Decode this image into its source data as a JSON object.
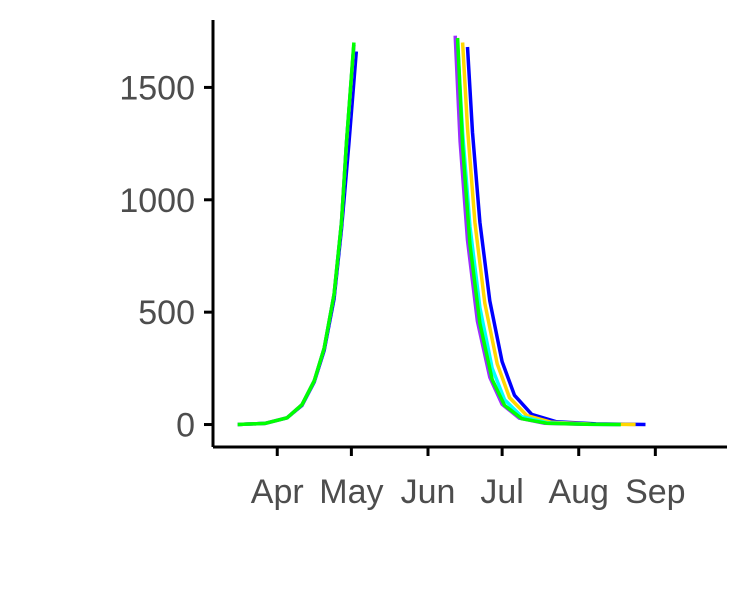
{
  "chart_data": {
    "type": "line",
    "title": "",
    "xlabel": "",
    "ylabel": "",
    "x_axis": {
      "type": "date",
      "range": [
        "2023-03-06",
        "2023-09-30"
      ],
      "ticks": [
        {
          "date": "2023-04-01",
          "label": "Apr"
        },
        {
          "date": "2023-05-01",
          "label": "May"
        },
        {
          "date": "2023-06-01",
          "label": "Jun"
        },
        {
          "date": "2023-07-01",
          "label": "Jul"
        },
        {
          "date": "2023-08-01",
          "label": "Aug"
        },
        {
          "date": "2023-09-01",
          "label": "Sep"
        }
      ]
    },
    "y_axis": {
      "range": [
        -100,
        1800
      ],
      "ticks": [
        {
          "value": 0,
          "label": "0"
        },
        {
          "value": 500,
          "label": "500"
        },
        {
          "value": 1000,
          "label": "1000"
        },
        {
          "value": 1500,
          "label": "1500"
        }
      ]
    },
    "grid": false,
    "legend": "none",
    "series": [
      {
        "color": "#0000ff",
        "rising": [
          [
            "2023-03-16",
            0
          ],
          [
            "2023-03-27",
            5
          ],
          [
            "2023-04-05",
            30
          ],
          [
            "2023-04-11",
            85
          ],
          [
            "2023-04-16",
            190
          ],
          [
            "2023-04-20",
            330
          ],
          [
            "2023-04-24",
            560
          ],
          [
            "2023-04-27",
            870
          ],
          [
            "2023-04-30",
            1250
          ],
          [
            "2023-05-03",
            1660
          ]
        ],
        "falling": [
          [
            "2023-06-17",
            1680
          ],
          [
            "2023-06-19",
            1300
          ],
          [
            "2023-06-22",
            900
          ],
          [
            "2023-06-26",
            550
          ],
          [
            "2023-07-01",
            280
          ],
          [
            "2023-07-06",
            130
          ],
          [
            "2023-07-13",
            45
          ],
          [
            "2023-07-23",
            12
          ],
          [
            "2023-08-08",
            3
          ],
          [
            "2023-08-28",
            0
          ]
        ]
      },
      {
        "color": "#ffd700",
        "rising": [
          [
            "2023-03-16",
            0
          ],
          [
            "2023-03-27",
            5
          ],
          [
            "2023-04-05",
            30
          ],
          [
            "2023-04-11",
            88
          ],
          [
            "2023-04-16",
            195
          ],
          [
            "2023-04-20",
            340
          ],
          [
            "2023-04-24",
            580
          ],
          [
            "2023-04-27",
            900
          ],
          [
            "2023-04-29",
            1250
          ],
          [
            "2023-05-02",
            1690
          ]
        ],
        "falling": [
          [
            "2023-06-15",
            1700
          ],
          [
            "2023-06-17",
            1320
          ],
          [
            "2023-06-20",
            900
          ],
          [
            "2023-06-24",
            540
          ],
          [
            "2023-06-29",
            270
          ],
          [
            "2023-07-04",
            120
          ],
          [
            "2023-07-11",
            40
          ],
          [
            "2023-07-21",
            10
          ],
          [
            "2023-08-06",
            2
          ],
          [
            "2023-08-24",
            0
          ]
        ]
      },
      {
        "color": "#00ffff",
        "rising": [
          [
            "2023-03-16",
            0
          ],
          [
            "2023-03-27",
            5
          ],
          [
            "2023-04-05",
            30
          ],
          [
            "2023-04-11",
            88
          ],
          [
            "2023-04-16",
            195
          ],
          [
            "2023-04-20",
            340
          ],
          [
            "2023-04-24",
            580
          ],
          [
            "2023-04-27",
            900
          ],
          [
            "2023-04-29",
            1250
          ],
          [
            "2023-05-02",
            1690
          ]
        ],
        "falling": [
          [
            "2023-06-13",
            1690
          ],
          [
            "2023-06-15",
            1300
          ],
          [
            "2023-06-18",
            880
          ],
          [
            "2023-06-22",
            520
          ],
          [
            "2023-06-27",
            250
          ],
          [
            "2023-07-02",
            110
          ],
          [
            "2023-07-09",
            35
          ],
          [
            "2023-07-19",
            8
          ],
          [
            "2023-08-04",
            1
          ],
          [
            "2023-08-18",
            0
          ]
        ]
      },
      {
        "color": "#9b30ff",
        "rising": [
          [
            "2023-03-16",
            0
          ],
          [
            "2023-03-27",
            5
          ],
          [
            "2023-04-05",
            30
          ],
          [
            "2023-04-11",
            88
          ],
          [
            "2023-04-16",
            195
          ],
          [
            "2023-04-20",
            340
          ],
          [
            "2023-04-24",
            580
          ],
          [
            "2023-04-27",
            900
          ],
          [
            "2023-04-29",
            1250
          ],
          [
            "2023-05-02",
            1690
          ]
        ],
        "falling": [
          [
            "2023-06-12",
            1730
          ],
          [
            "2023-06-14",
            1260
          ],
          [
            "2023-06-17",
            820
          ],
          [
            "2023-06-21",
            460
          ],
          [
            "2023-06-26",
            210
          ],
          [
            "2023-07-01",
            90
          ],
          [
            "2023-07-08",
            28
          ],
          [
            "2023-07-18",
            6
          ],
          [
            "2023-08-03",
            1
          ],
          [
            "2023-08-18",
            0
          ]
        ]
      },
      {
        "color": "#00ff00",
        "rising": [
          [
            "2023-03-16",
            0
          ],
          [
            "2023-03-27",
            5
          ],
          [
            "2023-04-05",
            30
          ],
          [
            "2023-04-11",
            88
          ],
          [
            "2023-04-16",
            195
          ],
          [
            "2023-04-20",
            340
          ],
          [
            "2023-04-24",
            580
          ],
          [
            "2023-04-27",
            900
          ],
          [
            "2023-04-29",
            1250
          ],
          [
            "2023-05-02",
            1700
          ]
        ],
        "falling": [
          [
            "2023-06-13",
            1720
          ],
          [
            "2023-06-15",
            1240
          ],
          [
            "2023-06-18",
            800
          ],
          [
            "2023-06-22",
            450
          ],
          [
            "2023-06-27",
            200
          ],
          [
            "2023-07-02",
            85
          ],
          [
            "2023-07-09",
            26
          ],
          [
            "2023-07-19",
            6
          ],
          [
            "2023-08-04",
            1
          ],
          [
            "2023-08-18",
            0
          ]
        ]
      }
    ]
  }
}
